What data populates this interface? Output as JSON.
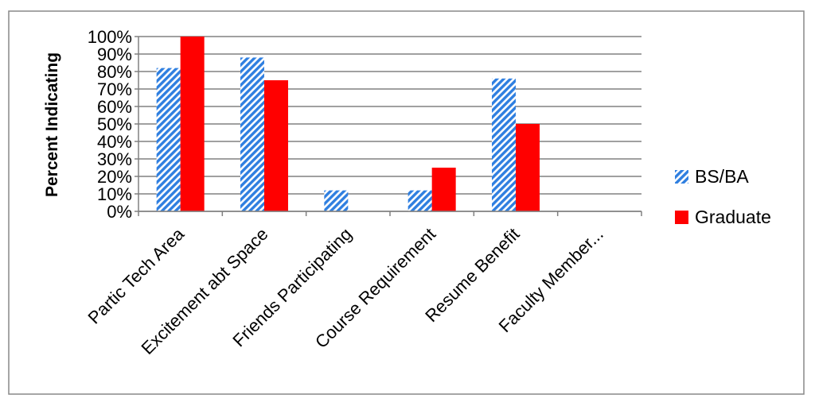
{
  "chart_data": {
    "type": "bar",
    "title": "",
    "xlabel": "",
    "ylabel": "Percent Indicating",
    "ylim": [
      0,
      100
    ],
    "yticks": [
      0,
      10,
      20,
      30,
      40,
      50,
      60,
      70,
      80,
      90,
      100
    ],
    "ytick_labels": [
      "0%",
      "10%",
      "20%",
      "30%",
      "40%",
      "50%",
      "60%",
      "70%",
      "80%",
      "90%",
      "100%"
    ],
    "grid": true,
    "legend": "right",
    "categories": [
      "Partic Tech Area",
      "Excitement abt Space",
      "Friends Participating",
      "Course Requirement",
      "Resume Benefit",
      "Faculty Member..."
    ],
    "series": [
      {
        "name": "BS/BA",
        "values": [
          82,
          88,
          12,
          12,
          76,
          0
        ],
        "color": "#2f7fe0",
        "pattern": "diagonal-hatch"
      },
      {
        "name": "Graduate",
        "values": [
          100,
          75,
          0,
          25,
          50,
          0
        ],
        "color": "#ff0000",
        "pattern": "solid"
      }
    ]
  }
}
